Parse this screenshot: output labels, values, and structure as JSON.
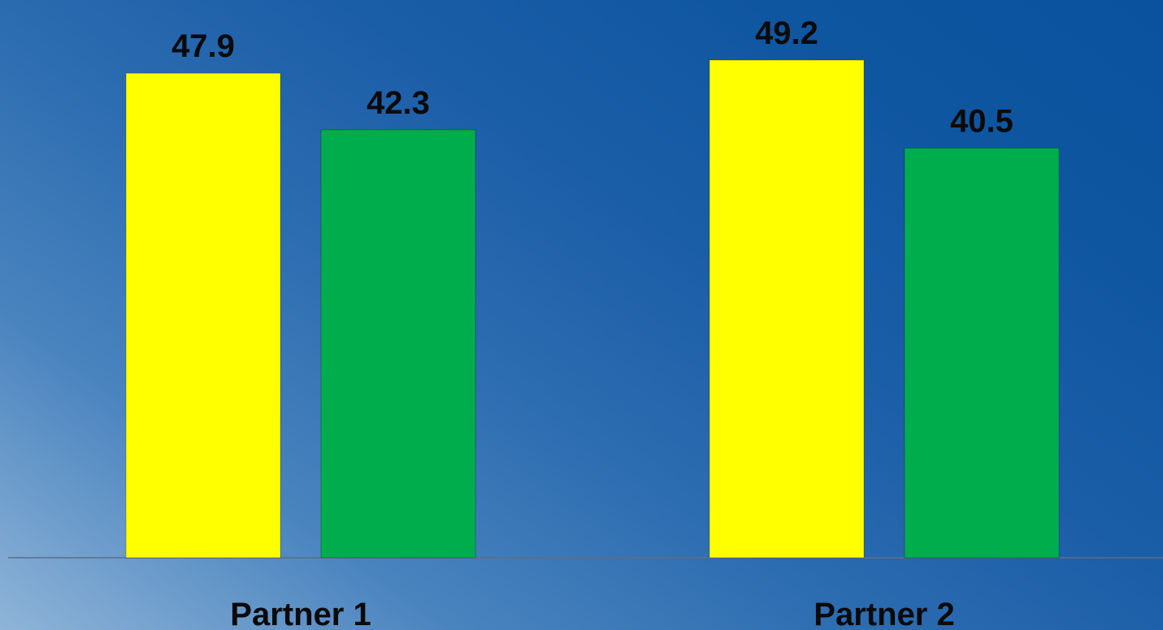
{
  "chart_data": {
    "type": "bar",
    "categories": [
      "Partner 1",
      "Partner 2"
    ],
    "series": [
      {
        "color": "#ffff00",
        "values": [
          47.9,
          49.2
        ]
      },
      {
        "color": "#00ad4c",
        "values": [
          42.3,
          40.5
        ]
      }
    ],
    "data_labels": [
      [
        "47.9",
        "49.2"
      ],
      [
        "42.3",
        "40.5"
      ]
    ],
    "ylim": [
      0,
      55
    ],
    "grid": false,
    "legend": "none",
    "axis_line_color": "#5a6f86"
  }
}
